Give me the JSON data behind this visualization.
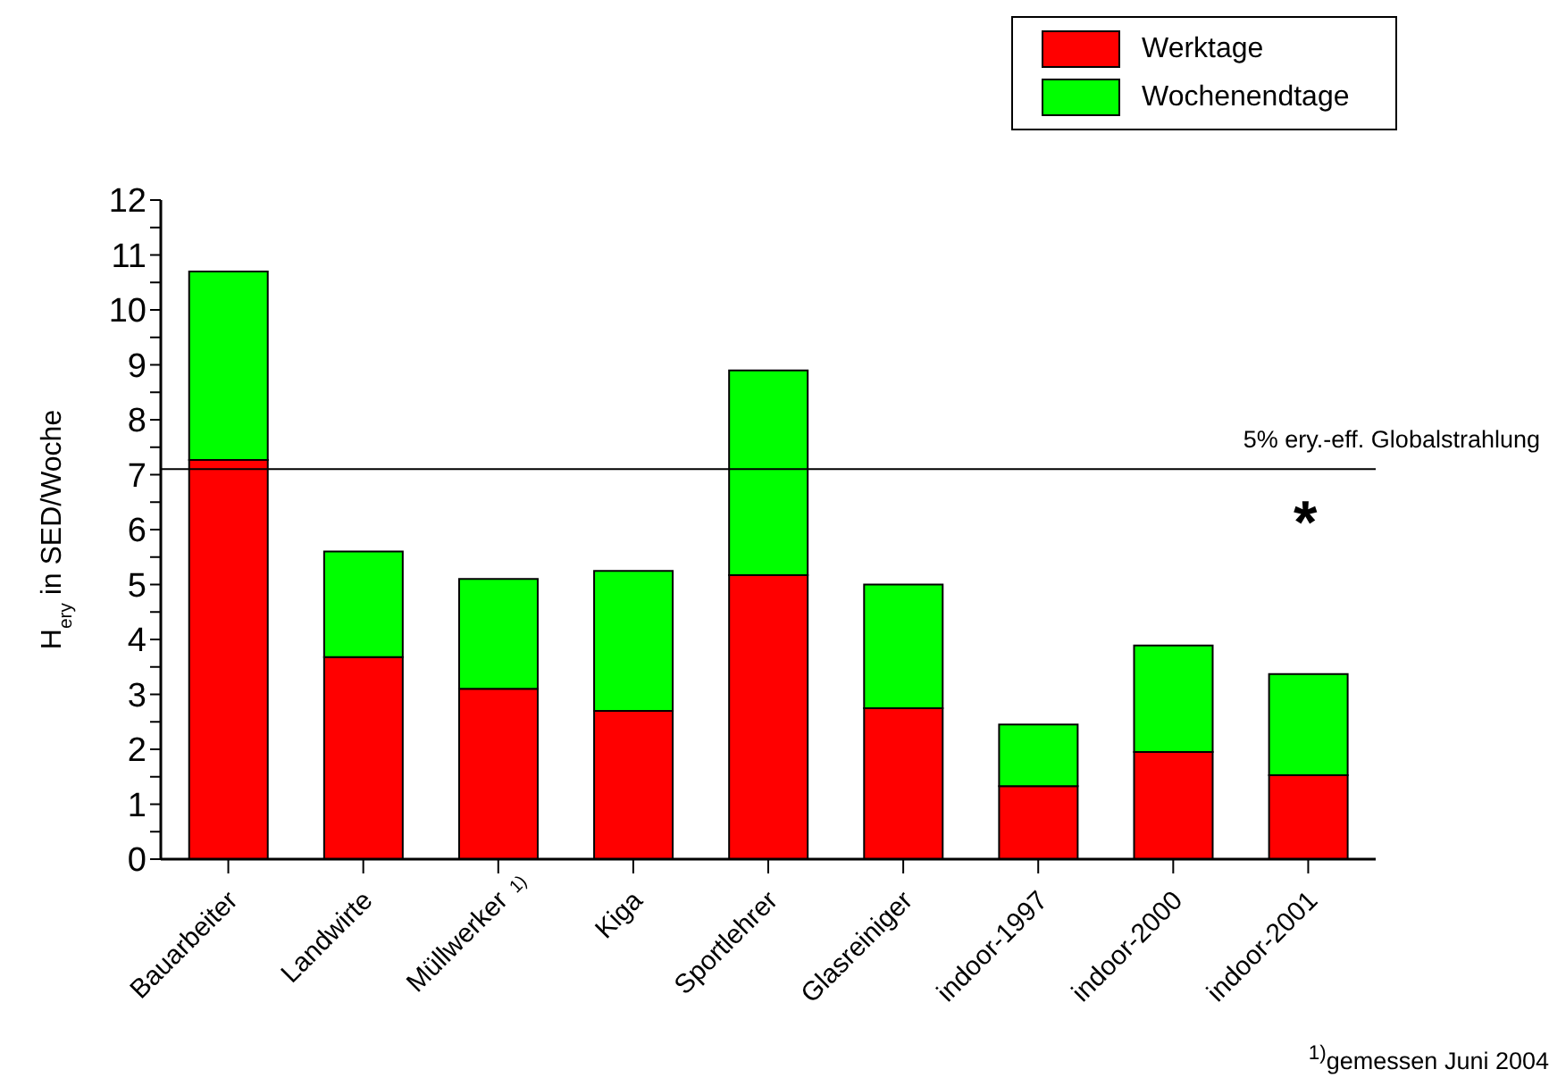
{
  "chart_data": {
    "type": "bar",
    "stacked": true,
    "ylabel": "H$_{ery}$ in SED/Woche",
    "categories": [
      "Bauarbeiter",
      "Landwirte",
      "Müllwerker",
      "Kiga",
      "Sportlehrer",
      "Glasreiniger",
      "indoor-1997",
      "indoor-2000",
      "indoor-2001"
    ],
    "series": [
      {
        "name": "Werktage",
        "color": "#ff0000",
        "values": [
          7.27,
          3.68,
          3.1,
          2.7,
          5.17,
          2.75,
          1.33,
          1.95,
          1.53
        ]
      },
      {
        "name": "Wochenendtage",
        "color": "#00ff00",
        "values": [
          3.43,
          1.92,
          2.0,
          2.55,
          3.73,
          2.25,
          1.12,
          1.94,
          1.84
        ]
      }
    ],
    "ylim": [
      0,
      12
    ],
    "yticks": [
      0,
      {
        "value": 0.5,
        "label": null
      },
      1,
      {
        "value": 1.5,
        "label": null
      },
      2,
      {
        "value": 2.5,
        "label": null
      },
      3,
      {
        "value": 3.5,
        "label": null
      },
      4,
      {
        "value": 4.5,
        "label": null
      },
      5,
      {
        "value": 5.5,
        "label": null
      },
      6,
      {
        "value": 6.5,
        "label": null
      },
      7,
      {
        "value": 7.5,
        "label": null
      },
      8,
      {
        "value": 8.5,
        "label": null
      },
      9,
      {
        "value": 9.5,
        "label": null
      },
      10,
      {
        "value": 10.5,
        "label": null
      },
      11,
      {
        "value": 11.5,
        "label": null
      },
      12
    ],
    "ref_lines": [
      {
        "axis": "y",
        "value": 7.1,
        "label": "5% ery.-eff. Globalstrahlung",
        "color": "#000000"
      }
    ],
    "annotations": [
      "*",
      "1)",
      "$^{1)}$gemessen Juni 2004"
    ],
    "legend": "top right"
  }
}
